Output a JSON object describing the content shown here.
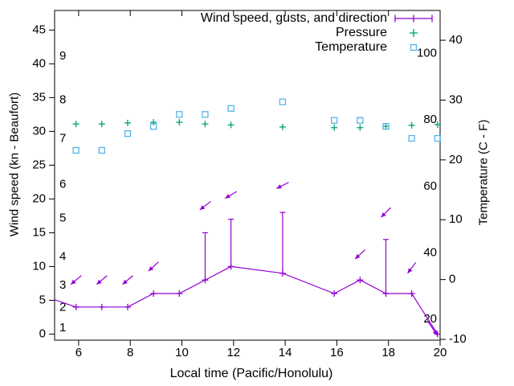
{
  "colors": {
    "wind": "#9400d3",
    "pressure": "#009e73",
    "temperature": "#56b4e9",
    "axis": "#000000",
    "text": "#000000",
    "background": "#ffffff"
  },
  "chart_data": {
    "type": "line",
    "title": "",
    "xlabel": "Local time (Pacific/Honolulu)",
    "ylabel_left": "Wind speed (kn - Beaufort)",
    "ylabel_right": "Temperature (C - F)",
    "legend": [
      {
        "label": "Wind speed, gusts, and direction",
        "series": "wind"
      },
      {
        "label": "Pressure",
        "series": "pressure"
      },
      {
        "label": "Temperature",
        "series": "temperature"
      }
    ],
    "legend_position": "top-right",
    "grid": false,
    "x": [
      4.9,
      5.9,
      6.9,
      7.9,
      8.9,
      9.9,
      10.9,
      11.9,
      13.9,
      15.9,
      16.9,
      17.9,
      18.9,
      19.9
    ],
    "series": [
      {
        "name": "wind_speed_kn",
        "axis": "left",
        "marker": "plus",
        "line": true,
        "values": [
          5.3,
          4,
          4,
          4,
          6,
          6,
          8,
          10,
          9,
          6,
          8,
          6,
          6,
          0
        ]
      },
      {
        "name": "wind_gust_kn",
        "axis": "left",
        "marker": "errorbar",
        "values": [
          null,
          null,
          null,
          null,
          null,
          null,
          15,
          17,
          18,
          null,
          null,
          14,
          null,
          null
        ]
      },
      {
        "name": "pressure_left_axis_units",
        "axis": "left",
        "marker": "plus",
        "line": false,
        "values": [
          null,
          31.1,
          31.1,
          31.25,
          31.35,
          31.35,
          31.1,
          30.95,
          30.65,
          30.55,
          30.55,
          30.75,
          30.9,
          31.0
        ]
      },
      {
        "name": "temperature_c",
        "axis": "right",
        "marker": "square",
        "line": false,
        "values": [
          null,
          21.6,
          21.6,
          24.4,
          25.6,
          27.6,
          27.6,
          28.6,
          29.7,
          26.6,
          26.6,
          25.6,
          23.6,
          23.6
        ]
      }
    ],
    "wind_direction_arrows": [
      {
        "t": 5.9,
        "kn": 8,
        "deg": 140
      },
      {
        "t": 6.9,
        "kn": 8,
        "deg": 140
      },
      {
        "t": 7.9,
        "kn": 8,
        "deg": 140
      },
      {
        "t": 8.9,
        "kn": 10,
        "deg": 138
      },
      {
        "t": 10.9,
        "kn": 19,
        "deg": 142
      },
      {
        "t": 11.9,
        "kn": 20.6,
        "deg": 150
      },
      {
        "t": 13.9,
        "kn": 22,
        "deg": 153
      },
      {
        "t": 16.9,
        "kn": 11.8,
        "deg": 137
      },
      {
        "t": 17.9,
        "kn": 18,
        "deg": 135
      },
      {
        "t": 18.9,
        "kn": 9.8,
        "deg": 127
      },
      {
        "t": 19.7,
        "kn": 0.9,
        "deg": 56,
        "len": 22
      }
    ],
    "axes": {
      "x": {
        "ticks": [
          6,
          8,
          10,
          12,
          14,
          16,
          18,
          20
        ],
        "range": [
          5.07,
          20
        ]
      },
      "y_left": {
        "ticks": [
          0,
          5,
          10,
          15,
          20,
          25,
          30,
          35,
          40,
          45
        ],
        "range": [
          -0.9,
          47.9
        ],
        "beaufort": [
          {
            "label": "1",
            "kn": 0.9
          },
          {
            "label": "2",
            "kn": 3.9
          },
          {
            "label": "3",
            "kn": 7.2
          },
          {
            "label": "4",
            "kn": 11.4
          },
          {
            "label": "5",
            "kn": 17.1
          },
          {
            "label": "6",
            "kn": 22.1
          },
          {
            "label": "7",
            "kn": 28.9
          },
          {
            "label": "8",
            "kn": 34.6
          },
          {
            "label": "9",
            "kn": 41.1
          }
        ]
      },
      "y_right": {
        "ticks": [
          -10,
          0,
          10,
          20,
          30,
          40
        ],
        "range": [
          -10.13,
          44.98
        ],
        "fahrenheit": [
          100,
          80,
          60,
          40,
          20
        ]
      }
    }
  }
}
